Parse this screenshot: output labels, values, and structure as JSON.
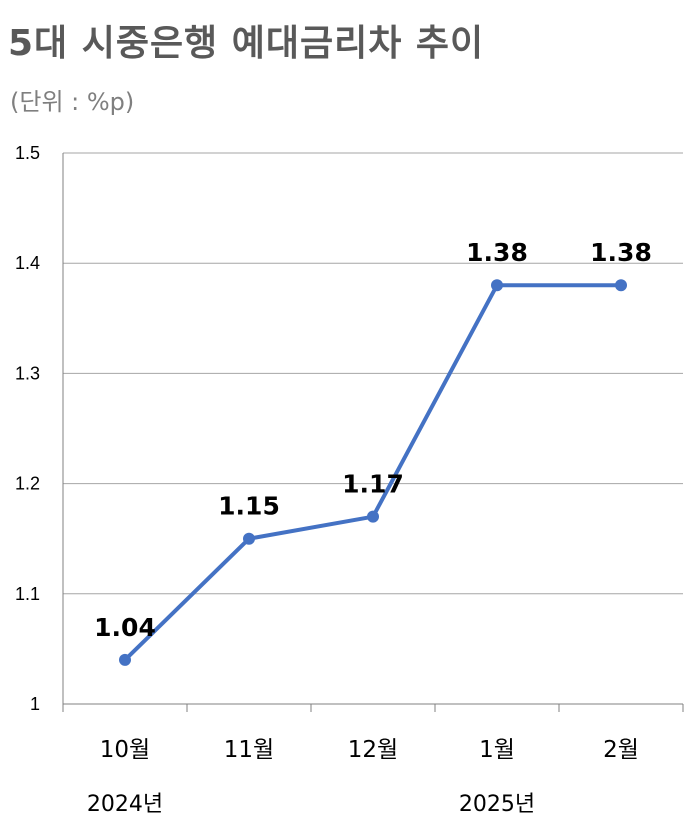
{
  "header": {
    "title": "5대 시중은행 예대금리차 추이",
    "unit": "(단위 : %p)"
  },
  "colors": {
    "series": "#4472C4",
    "grid": "#A6A6A6",
    "axis": "#808080"
  },
  "chart_data": {
    "type": "line",
    "title": "5대 시중은행 예대금리차 추이",
    "subtitle": "(단위 : %p)",
    "categories": [
      "10월",
      "11월",
      "12월",
      "1월",
      "2월"
    ],
    "year_labels": [
      {
        "label": "2024년",
        "category_index": 0
      },
      {
        "label": "2025년",
        "category_index": 3
      }
    ],
    "series": [
      {
        "values": [
          1.04,
          1.15,
          1.17,
          1.38,
          1.38
        ],
        "value_labels": [
          "1.04",
          "1.15",
          "1.17",
          "1.38",
          "1.38"
        ]
      }
    ],
    "yticks": [
      "1",
      "1.1",
      "1.2",
      "1.3",
      "1.4",
      "1.5"
    ],
    "ylim": [
      1,
      1.5
    ],
    "grid": true,
    "legend": "none"
  }
}
